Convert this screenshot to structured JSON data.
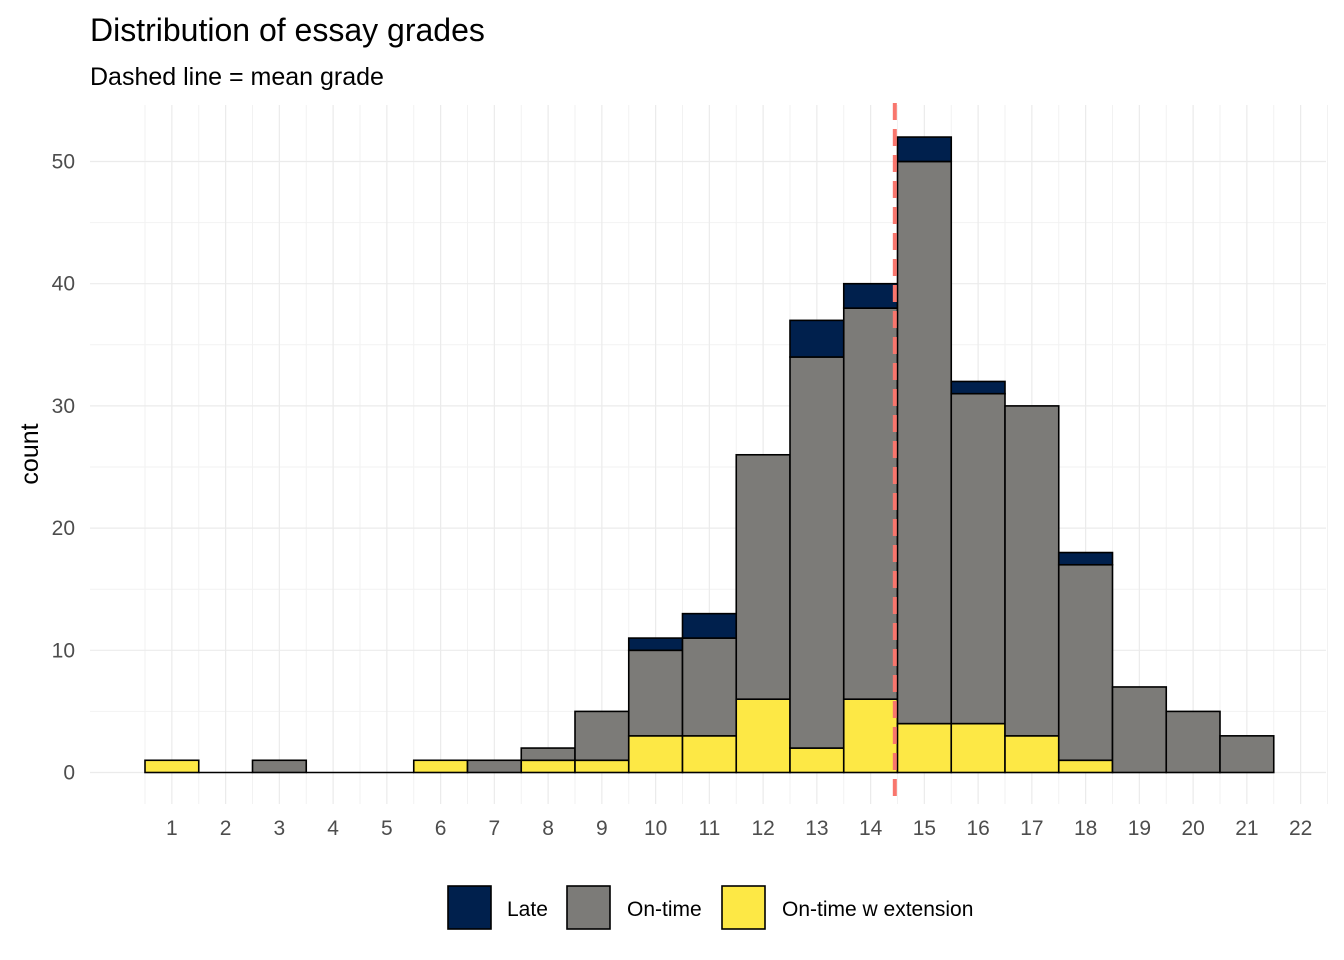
{
  "chart_data": {
    "type": "bar",
    "stacked": true,
    "title": "Distribution of essay grades",
    "subtitle": "Dashed line = mean grade",
    "xlabel": "",
    "ylabel": "count",
    "categories": [
      "1",
      "2",
      "3",
      "4",
      "5",
      "6",
      "7",
      "8",
      "9",
      "10",
      "11",
      "12",
      "13",
      "14",
      "15",
      "16",
      "17",
      "18",
      "19",
      "20",
      "21",
      "22"
    ],
    "series": [
      {
        "name": "On-time w extension",
        "color": "#FDE845",
        "values": [
          1,
          0,
          0,
          0,
          0,
          1,
          0,
          1,
          1,
          3,
          3,
          6,
          2,
          6,
          4,
          4,
          3,
          1,
          0,
          0,
          0,
          0
        ]
      },
      {
        "name": "On-time",
        "color": "#7C7B78",
        "values": [
          0,
          0,
          1,
          0,
          0,
          0,
          1,
          1,
          4,
          7,
          8,
          20,
          32,
          32,
          46,
          27,
          27,
          16,
          7,
          5,
          3,
          0
        ]
      },
      {
        "name": "Late",
        "color": "#00204D",
        "values": [
          0,
          0,
          0,
          0,
          0,
          0,
          0,
          0,
          0,
          1,
          2,
          0,
          3,
          2,
          2,
          1,
          0,
          1,
          0,
          0,
          0,
          0
        ]
      }
    ],
    "legend_order": [
      "Late",
      "On-time",
      "On-time w extension"
    ],
    "mean_line": {
      "x": 14.45,
      "color": "#F8766D",
      "style": "dashed"
    },
    "xlim": [
      0.5,
      22.5
    ],
    "ylim": [
      0,
      53
    ],
    "yticks": [
      0,
      10,
      20,
      30,
      40,
      50
    ],
    "grid": true,
    "legend_position": "bottom"
  }
}
